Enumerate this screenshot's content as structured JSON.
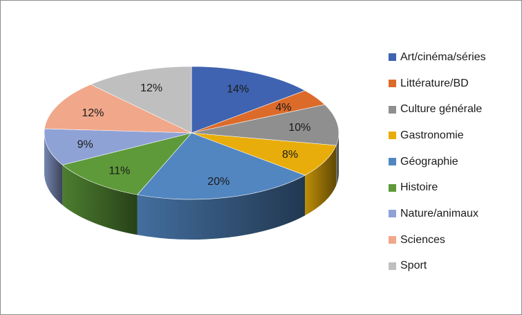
{
  "chart_data": {
    "type": "pie",
    "title": "",
    "categories": [
      "Art/cinéma/séries",
      "Littérature/BD",
      "Culture générale",
      "Gastronomie",
      "Géographie",
      "Histoire",
      "Nature/animaux",
      "Sciences",
      "Sport"
    ],
    "values": [
      14,
      4,
      10,
      8,
      20,
      11,
      9,
      12,
      12
    ],
    "labels": [
      "14%",
      "4%",
      "10%",
      "8%",
      "20%",
      "11%",
      "9%",
      "12%",
      "12%"
    ],
    "colors": [
      "#3f63b0",
      "#dc6b2a",
      "#8f8f8f",
      "#e8ad0a",
      "#5286c1",
      "#5e9a3a",
      "#8fa2d6",
      "#f1a78a",
      "#bfbfbf"
    ],
    "three_d": true,
    "start_angle_deg": 0,
    "direction": "clockwise",
    "legend_position": "right"
  }
}
